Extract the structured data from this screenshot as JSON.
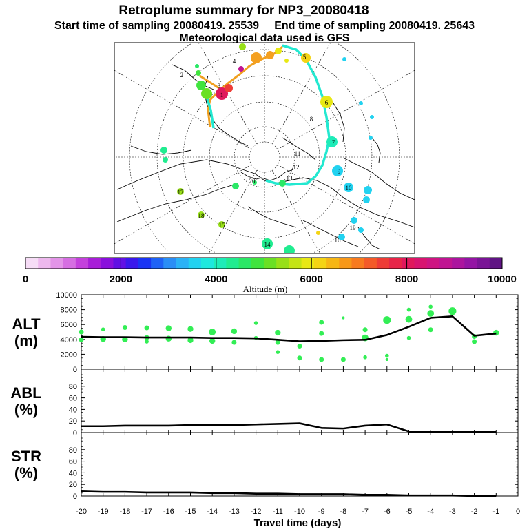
{
  "header": {
    "title": "Retroplume summary for NP3_20080418",
    "sampling_line": "Start time of sampling 20080419. 25539     End time of sampling 20080419. 25643",
    "met_line": "Meteorological data used is GFS"
  },
  "colors": {
    "plume_path": "#22e8d0",
    "plume_path_early": "#f0a020",
    "panel_line": "#000000",
    "dots": "#33ee55"
  },
  "colorbar": {
    "title": "Altitude (m)",
    "tick_labels": [
      "0",
      "2000",
      "4000",
      "6000",
      "8000",
      "10000"
    ],
    "min": 0,
    "max": 10000,
    "colors": [
      "#f6dcf6",
      "#eeb8ee",
      "#e394e8",
      "#d66ee2",
      "#c440dc",
      "#a81ed8",
      "#8a10dc",
      "#6210e4",
      "#3a18ec",
      "#1a34f4",
      "#1e62f6",
      "#2a8ef6",
      "#2ab2f6",
      "#22d2f0",
      "#1ee8de",
      "#1eecb8",
      "#20ec90",
      "#2ae866",
      "#40e43e",
      "#6ae024",
      "#98e018",
      "#c4e414",
      "#e8e814",
      "#f4d414",
      "#f6b614",
      "#f89818",
      "#f87a1e",
      "#f45a28",
      "#ee3c36",
      "#e82448",
      "#e0185c",
      "#d81470",
      "#ce1482",
      "#c01492",
      "#ac149e",
      "#9414a4",
      "#7a1496",
      "#601484"
    ]
  },
  "map": {
    "labels": [
      "1",
      "2",
      "3",
      "4",
      "5",
      "6",
      "7",
      "8",
      "9",
      "10",
      "11",
      "12",
      "13",
      "14",
      "15",
      "16",
      "17",
      "18",
      "19",
      "20"
    ]
  },
  "chart_data": [
    {
      "type": "line",
      "name": "ALT",
      "ylabel": "ALT\n(m)",
      "ylabel_top": "ALT",
      "ylabel_bottom": "(m)",
      "x": [
        -20,
        -19,
        -18,
        -17,
        -16,
        -15,
        -14,
        -13,
        -12,
        -11,
        -10,
        -9,
        -8,
        -7,
        -6,
        -5,
        -4,
        -3,
        -2,
        -1
      ],
      "values": [
        4350,
        4300,
        4300,
        4250,
        4250,
        4250,
        4200,
        4200,
        4150,
        3950,
        3750,
        3800,
        3900,
        3950,
        4600,
        5700,
        6900,
        7100,
        4500,
        4800
      ],
      "ylim": [
        0,
        10000
      ],
      "ytick_labels": [
        "0",
        "2000",
        "4000",
        "6000",
        "8000",
        "10000"
      ],
      "scatter": {
        "name": "cluster altitudes",
        "x": [
          -20,
          -20,
          -19,
          -19,
          -18,
          -18,
          -17,
          -17,
          -17,
          -16,
          -16,
          -15,
          -15,
          -14,
          -14,
          -13,
          -13,
          -12,
          -12,
          -11,
          -11,
          -11,
          -10,
          -10,
          -9,
          -9,
          -9,
          -8,
          -8,
          -7,
          -7,
          -7,
          -6,
          -6,
          -6,
          -5,
          -5,
          -5,
          -4,
          -4,
          -4,
          -3,
          -3,
          -2,
          -2,
          -1
        ],
        "y": [
          5000,
          3950,
          5350,
          4050,
          5600,
          4000,
          5550,
          4250,
          3700,
          5500,
          4100,
          5400,
          3900,
          5000,
          3800,
          5100,
          3600,
          6200,
          4200,
          4900,
          3600,
          2300,
          3100,
          1500,
          6300,
          1300,
          4800,
          6900,
          1300,
          5300,
          1600,
          4200,
          6600,
          1800,
          1300,
          6700,
          4200,
          8000,
          5300,
          7500,
          8400,
          7900,
          7800,
          3700,
          4400,
          4900
        ],
        "sizes": [
          5,
          5,
          4,
          6,
          5,
          6,
          5,
          5,
          4,
          6,
          6,
          6,
          6,
          7,
          6,
          6,
          5,
          4,
          4,
          6,
          5,
          4,
          5,
          5,
          5,
          5,
          5,
          3,
          5,
          5,
          4,
          7,
          8,
          4,
          3,
          7,
          4,
          4,
          5,
          7,
          4,
          5,
          8,
          5,
          5,
          6
        ]
      }
    },
    {
      "type": "line",
      "name": "ABL",
      "ylabel": "ABL\n(%)",
      "ylabel_top": "ABL",
      "ylabel_bottom": "(%)",
      "x": [
        -20,
        -19,
        -18,
        -17,
        -16,
        -15,
        -14,
        -13,
        -12,
        -11,
        -10,
        -9,
        -8,
        -7,
        -6,
        -5,
        -4,
        -3,
        -2,
        -1
      ],
      "values": [
        11,
        11,
        12,
        12,
        12,
        13,
        13,
        13,
        14,
        15,
        16,
        8,
        7,
        12,
        14,
        2,
        1,
        1,
        1,
        1
      ],
      "ylim": [
        0,
        100
      ],
      "ytick_labels": [
        "0",
        "20",
        "40",
        "60",
        "80"
      ]
    },
    {
      "type": "line",
      "name": "STR",
      "ylabel": "STR\n(%)",
      "ylabel_top": "STR",
      "ylabel_bottom": "(%)",
      "x": [
        -20,
        -19,
        -18,
        -17,
        -16,
        -15,
        -14,
        -13,
        -12,
        -11,
        -10,
        -9,
        -8,
        -7,
        -6,
        -5,
        -4,
        -3,
        -2,
        -1
      ],
      "values": [
        8,
        7,
        7,
        6,
        6,
        6,
        5,
        5,
        4,
        4,
        3,
        3,
        3,
        2,
        2,
        1,
        1,
        1,
        0,
        0
      ],
      "ylim": [
        0,
        100
      ],
      "ytick_labels": [
        "0",
        "20",
        "40",
        "60",
        "80"
      ]
    }
  ],
  "x_axis": {
    "title": "Travel time (days)",
    "xlim": [
      -20,
      0
    ],
    "tick_labels": [
      "-20",
      "-19",
      "-18",
      "-17",
      "-16",
      "-15",
      "-14",
      "-13",
      "-12",
      "-11",
      "-10",
      "-9",
      "-8",
      "-7",
      "-6",
      "-5",
      "-4",
      "-3",
      "-2",
      "-1",
      "0"
    ]
  }
}
